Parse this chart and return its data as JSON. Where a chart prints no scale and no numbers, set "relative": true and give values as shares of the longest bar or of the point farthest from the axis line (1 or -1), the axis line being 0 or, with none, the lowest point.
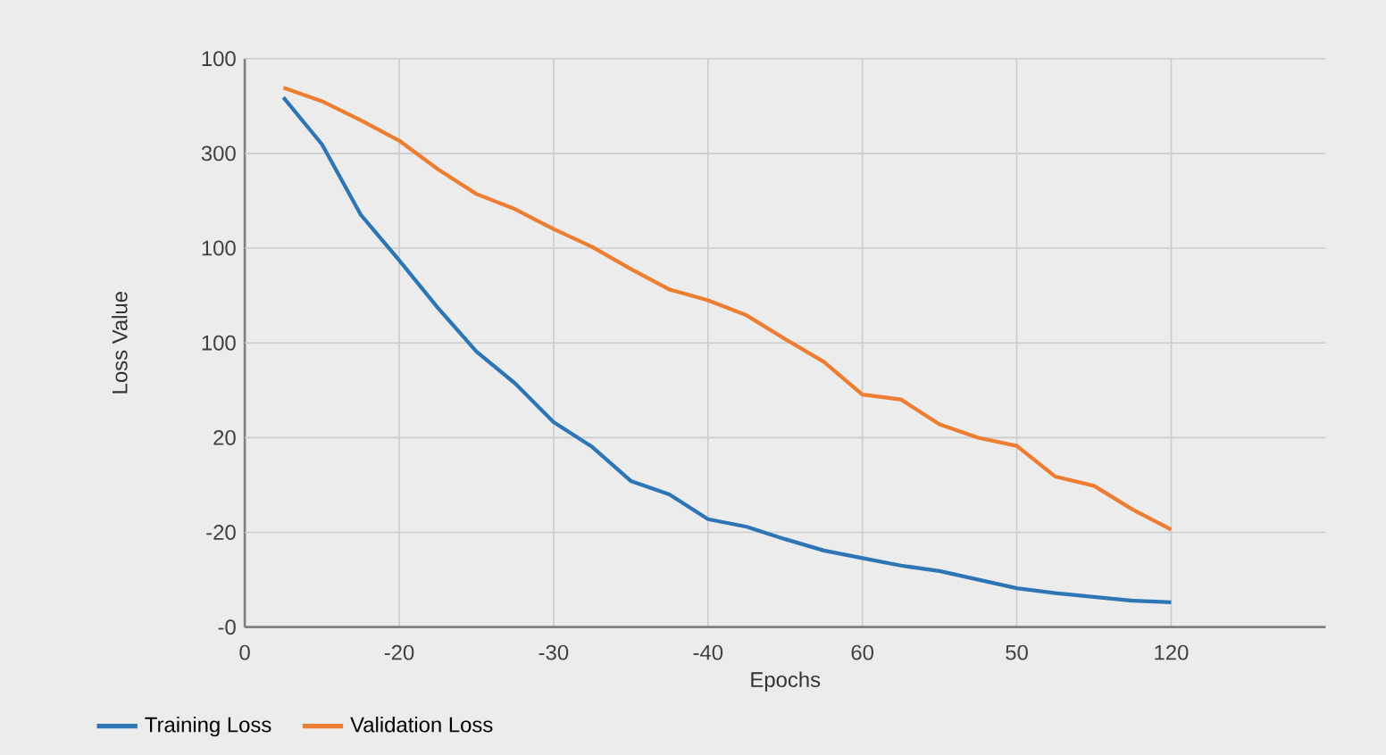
{
  "chart_data": {
    "type": "line",
    "xlabel": "Epochs",
    "ylabel": "Loss Value",
    "relative": true,
    "categories": [
      "0",
      null,
      null,
      null,
      "-20",
      null,
      null,
      null,
      "-30",
      null,
      null,
      null,
      "-40",
      null,
      null,
      null,
      "60",
      null,
      null,
      null,
      "50",
      null,
      null,
      null,
      "120"
    ],
    "annotations": [
      "100",
      "300",
      "100",
      "100",
      "20",
      "-20",
      "-0"
    ],
    "grid": true,
    "legend": "bottom left",
    "marker": "none",
    "line_style": "solid",
    "series": [
      {
        "name": "Training Loss",
        "color": "#2e75b6",
        "values": [
          null,
          0.982,
          0.895,
          0.765,
          0.68,
          0.592,
          0.511,
          0.452,
          0.38,
          0.334,
          0.271,
          0.246,
          0.2,
          0.186,
          0.163,
          0.142,
          0.128,
          0.114,
          0.104,
          0.088,
          0.072,
          0.063,
          0.056,
          0.049,
          0.046
        ]
      },
      {
        "name": "Validation Loss",
        "color": "#ed7d31",
        "values": [
          null,
          1,
          0.975,
          0.94,
          0.902,
          0.849,
          0.803,
          0.775,
          0.738,
          0.705,
          0.664,
          0.626,
          0.606,
          0.578,
          0.534,
          0.492,
          0.431,
          0.422,
          0.376,
          0.351,
          0.336,
          0.279,
          0.262,
          0.218,
          0.181
        ]
      }
    ]
  }
}
